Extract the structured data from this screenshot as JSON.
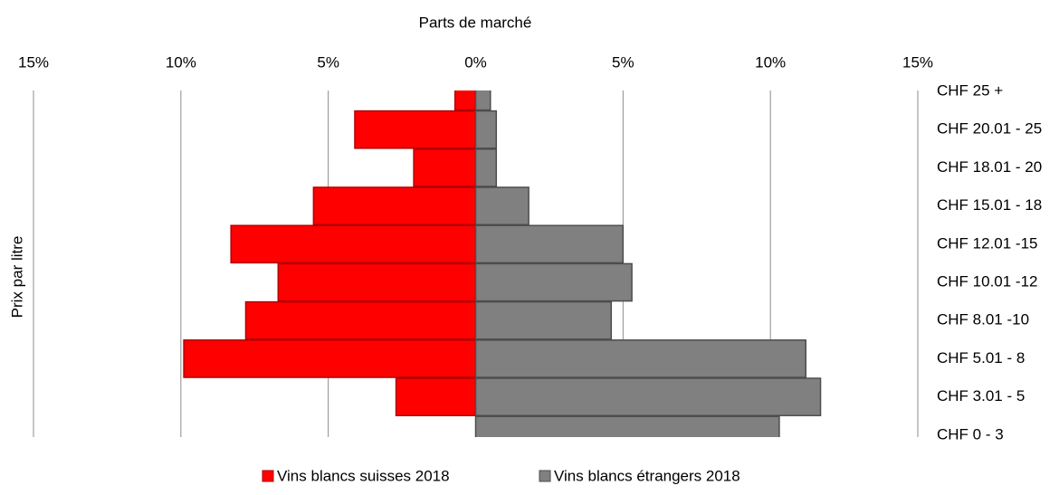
{
  "chart_data": {
    "type": "pyramid",
    "x_label": "Parts de marché",
    "y_label": "Prix par litre",
    "categories": [
      "CHF 25 +",
      "CHF 20.01 - 25",
      "CHF 18.01 - 20",
      "CHF 15.01 - 18",
      "CHF 12.01 -15",
      "CHF 10.01 -12",
      "CHF 8.01 -10",
      "CHF 5.01 - 8",
      "CHF 3.01 - 5",
      "CHF 0 - 3"
    ],
    "series": [
      {
        "name": "Vins blancs suisses 2018",
        "color": "#ff0000",
        "side": "left",
        "values": [
          0.7,
          4.1,
          2.1,
          5.5,
          8.3,
          6.7,
          7.8,
          9.9,
          2.7,
          0
        ]
      },
      {
        "name": "Vins blancs étrangers 2018",
        "color": "#808080",
        "side": "right",
        "values": [
          0.5,
          0.7,
          0.7,
          1.8,
          5.0,
          5.3,
          4.6,
          11.2,
          11.7,
          10.3
        ]
      }
    ],
    "xlim": [
      -15,
      15
    ],
    "xticks": [
      {
        "value": -15,
        "label": "15%"
      },
      {
        "value": -10,
        "label": "10%"
      },
      {
        "value": -5,
        "label": "5%"
      },
      {
        "value": 0,
        "label": "0%"
      },
      {
        "value": 5,
        "label": "5%"
      },
      {
        "value": 10,
        "label": "10%"
      },
      {
        "value": 15,
        "label": "15%"
      }
    ],
    "negative_tick_color": "#ff0000",
    "grid": true,
    "legend": "bottom"
  }
}
